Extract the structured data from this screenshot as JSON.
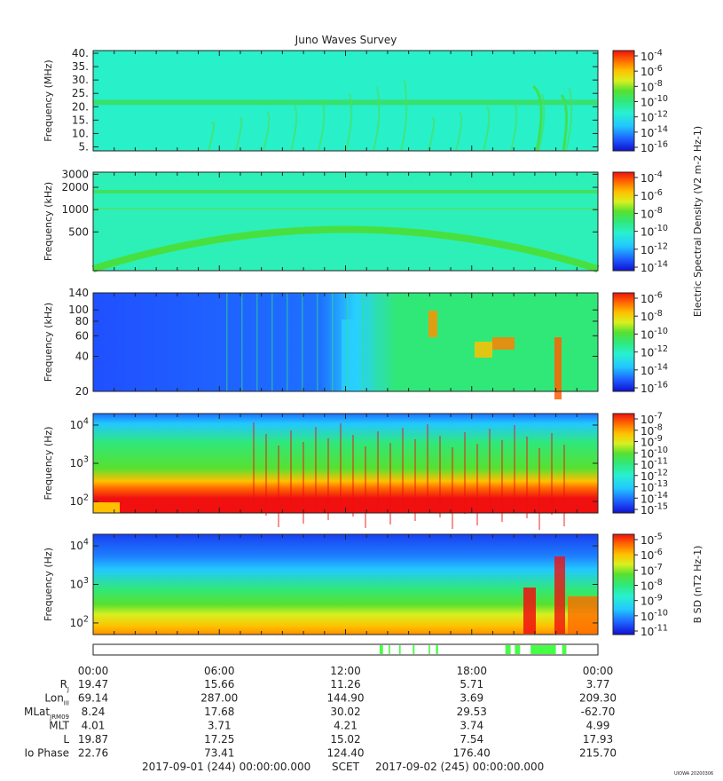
{
  "title": "Juno Waves Survey",
  "watermark": "UIOWA 20200306",
  "colors": {
    "scale": [
      "#1010d0",
      "#1e60ff",
      "#22c8ff",
      "#28f0d0",
      "#30e878",
      "#58e030",
      "#d8f020",
      "#ffc000",
      "#ff6a00",
      "#f01010"
    ]
  },
  "chart_data": [
    {
      "type": "heatmap",
      "ylabel": "Frequency (MHz)",
      "yticks": [
        "5.",
        "10.",
        "15.",
        "20.",
        "25.",
        "30.",
        "35.",
        "40."
      ],
      "yscale": "linear",
      "ylim": [
        3.5,
        41
      ],
      "colorbar_ticks": [
        "10^-4",
        "10^-6",
        "10^-8",
        "10^-10",
        "10^-12",
        "10^-14",
        "10^-16"
      ],
      "background": "#28f0c8",
      "features": "horizontal band near 21 MHz; emissions rising late in interval"
    },
    {
      "type": "heatmap",
      "ylabel": "Frequency (kHz)",
      "yticks": [
        "3000",
        "2000",
        "1000",
        "500"
      ],
      "yscale": "log",
      "ylim": [
        150,
        3200
      ],
      "colorbar_ticks": [
        "10^-4",
        "10^-6",
        "10^-8",
        "10^-10",
        "10^-12",
        "10^-14"
      ],
      "colorbar_label": "Electric Spectral Density (V^2 m^-2 Hz^-1)",
      "background": "#2cf0b8",
      "features": "arched band peaking near 500 kHz at 12:00; band near 1600 kHz"
    },
    {
      "type": "heatmap",
      "ylabel": "Frequency (kHz)",
      "yticks": [
        "140",
        "100",
        "80",
        "60",
        "40",
        "20"
      ],
      "yscale": "log",
      "ylim": [
        20,
        140
      ],
      "colorbar_ticks": [
        "10^-6",
        "10^-8",
        "10^-10",
        "10^-12",
        "10^-14",
        "10^-16"
      ],
      "background": "#1e70ff",
      "features": "blue first half; green/cyan second half with orange patches"
    },
    {
      "type": "heatmap",
      "ylabel": "Frequency (Hz)",
      "yticks": [
        "10^4",
        "10^3",
        "10^2"
      ],
      "yscale": "log",
      "ylim": [
        50,
        20000
      ],
      "colorbar_ticks": [
        "10^-7",
        "10^-8",
        "10^-9",
        "10^-10",
        "10^-11",
        "10^-12",
        "10^-13",
        "10^-14",
        "10^-15"
      ],
      "background": "#30e070",
      "features": "strong red below ~300 Hz; blue above ~5 kHz"
    },
    {
      "type": "heatmap",
      "ylabel": "Frequency (Hz)",
      "yticks": [
        "10^4",
        "10^3",
        "10^2"
      ],
      "yscale": "log",
      "ylim": [
        50,
        20000
      ],
      "colorbar_ticks": [
        "10^-5",
        "10^-6",
        "10^-7",
        "10^-8",
        "10^-9",
        "10^-10",
        "10^-11"
      ],
      "colorbar_label": "B SD (nT^2 Hz^-1)",
      "background": "#30e070",
      "features": "blue above ~5 kHz; yellow/orange below ~200 Hz"
    }
  ],
  "flags": [
    [
      13.62,
      13.78
    ],
    [
      14.05,
      14.12
    ],
    [
      14.55,
      14.62
    ],
    [
      15.2,
      15.28
    ],
    [
      15.95,
      16.02
    ],
    [
      16.3,
      16.4
    ],
    [
      19.6,
      19.85
    ],
    [
      20.05,
      20.3
    ],
    [
      20.8,
      22.0
    ],
    [
      22.3,
      22.5
    ]
  ],
  "time_labels": [
    "00:00",
    "06:00",
    "12:00",
    "18:00",
    "00:00"
  ],
  "ephemeris": [
    {
      "label": "R",
      "sub": "J",
      "values": [
        "19.47",
        "15.66",
        "11.26",
        "5.71",
        "3.77"
      ]
    },
    {
      "label": "Lon",
      "sub": "III",
      "values": [
        "69.14",
        "287.00",
        "144.90",
        "3.69",
        "209.30"
      ]
    },
    {
      "label": "MLat",
      "sub": "JRM09",
      "values": [
        "8.24",
        "17.68",
        "30.02",
        "29.53",
        "-62.70"
      ]
    },
    {
      "label": "MLT",
      "sub": "",
      "values": [
        "4.01",
        "3.71",
        "4.21",
        "3.74",
        "4.99"
      ]
    },
    {
      "label": "L",
      "sub": "",
      "values": [
        "19.87",
        "17.25",
        "15.02",
        "7.54",
        "17.93"
      ]
    },
    {
      "label": "Io Phase",
      "sub": "",
      "values": [
        "22.76",
        "73.41",
        "124.40",
        "176.40",
        "215.70"
      ]
    }
  ],
  "footer": {
    "start": "2017-09-01 (244) 00:00:00.000",
    "mid": "SCET",
    "end": "2017-09-02 (245) 00:00:00.000"
  }
}
